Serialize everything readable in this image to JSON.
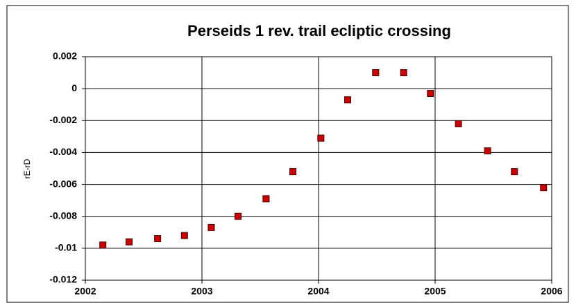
{
  "chart_data": {
    "type": "scatter",
    "title": "Perseids 1 rev. trail ecliptic crossing",
    "y_label": "rE-rD",
    "series": [
      {
        "color": "#cc0000",
        "x": [
          2002.15,
          2002.375,
          2002.62,
          2002.85,
          2003.08,
          2003.31,
          2003.55,
          2003.78,
          2004.02,
          2004.25,
          2004.49,
          2004.73,
          2004.96,
          2005.2,
          2005.45,
          2005.68,
          2005.93
        ],
        "values": [
          -0.0098,
          -0.0096,
          -0.0094,
          -0.0092,
          -0.0087,
          -0.008,
          -0.0069,
          -0.0052,
          -0.0031,
          -0.0007,
          0.001,
          0.001,
          -0.0003,
          -0.0022,
          -0.0039,
          -0.0052,
          -0.0062
        ]
      }
    ],
    "xlim": [
      2002,
      2006
    ],
    "xticks": [
      2002,
      2003,
      2004,
      2005,
      2006
    ],
    "ylim": [
      -0.012,
      0.002
    ],
    "yticks": [
      0.002,
      0,
      -0.002,
      -0.004,
      -0.006,
      -0.008,
      -0.01,
      -0.012
    ],
    "grid": true
  }
}
